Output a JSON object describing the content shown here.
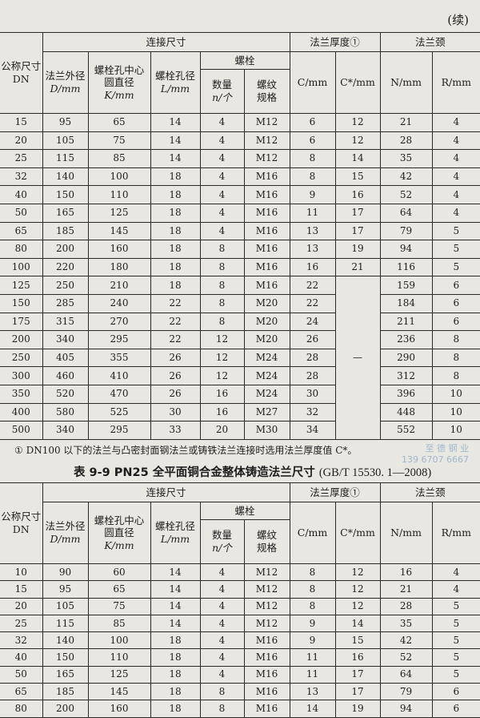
{
  "continued_label": "(续)",
  "headers": {
    "dn": [
      "公称尺寸",
      "DN"
    ],
    "connection": "连接尺寸",
    "d": [
      "法兰外径",
      "D/mm"
    ],
    "k": [
      "螺栓孔中心",
      "圆直径",
      "K/mm"
    ],
    "l": [
      "螺栓孔径",
      "L/mm"
    ],
    "bolt": "螺栓",
    "n": [
      "数量",
      "n/个"
    ],
    "thread": [
      "螺纹",
      "规格"
    ],
    "thickness": "法兰厚度①",
    "c": "C/mm",
    "cstar": "C*/mm",
    "neck": "法兰颈",
    "nn": "N/mm",
    "r": "R/mm"
  },
  "table1": {
    "rows": [
      [
        "15",
        "95",
        "65",
        "14",
        "4",
        "M12",
        "6",
        "12",
        "21",
        "4"
      ],
      [
        "20",
        "105",
        "75",
        "14",
        "4",
        "M12",
        "6",
        "12",
        "28",
        "4"
      ],
      [
        "25",
        "115",
        "85",
        "14",
        "4",
        "M12",
        "8",
        "14",
        "35",
        "4"
      ],
      [
        "32",
        "140",
        "100",
        "18",
        "4",
        "M16",
        "8",
        "15",
        "42",
        "4"
      ],
      [
        "40",
        "150",
        "110",
        "18",
        "4",
        "M16",
        "9",
        "16",
        "52",
        "4"
      ],
      [
        "50",
        "165",
        "125",
        "18",
        "4",
        "M16",
        "11",
        "17",
        "64",
        "4"
      ],
      [
        "65",
        "185",
        "145",
        "18",
        "4",
        "M16",
        "13",
        "17",
        "79",
        "5"
      ],
      [
        "80",
        "200",
        "160",
        "18",
        "8",
        "M16",
        "13",
        "19",
        "94",
        "5"
      ],
      [
        "100",
        "220",
        "180",
        "18",
        "8",
        "M16",
        "16",
        "21",
        "116",
        "5"
      ],
      [
        "125",
        "250",
        "210",
        "18",
        "8",
        "M16",
        "22",
        "—",
        "159",
        "6"
      ],
      [
        "150",
        "285",
        "240",
        "22",
        "8",
        "M20",
        "22",
        "",
        "184",
        "6"
      ],
      [
        "175",
        "315",
        "270",
        "22",
        "8",
        "M20",
        "24",
        "",
        "211",
        "6"
      ],
      [
        "200",
        "340",
        "295",
        "22",
        "12",
        "M20",
        "26",
        "",
        "236",
        "8"
      ],
      [
        "250",
        "405",
        "355",
        "26",
        "12",
        "M24",
        "28",
        "",
        "290",
        "8"
      ],
      [
        "300",
        "460",
        "410",
        "26",
        "12",
        "M24",
        "28",
        "",
        "312",
        "8"
      ],
      [
        "350",
        "520",
        "470",
        "26",
        "16",
        "M24",
        "30",
        "",
        "396",
        "10"
      ],
      [
        "400",
        "580",
        "525",
        "30",
        "16",
        "M27",
        "32",
        "",
        "448",
        "10"
      ],
      [
        "500",
        "340",
        "295",
        "33",
        "20",
        "M30",
        "34",
        "",
        "552",
        "10"
      ]
    ],
    "footnote": "① DN100 以下的法兰与凸密封面钢法兰或铸铁法兰连接时选用法兰厚度值 C*。"
  },
  "table2": {
    "caption": "表 9-9  PN25 全平面铜合金整体铸造法兰尺寸",
    "standard": "(GB/T 15530. 1—2008)",
    "rows": [
      [
        "10",
        "90",
        "60",
        "14",
        "4",
        "M12",
        "8",
        "12",
        "16",
        "4"
      ],
      [
        "15",
        "95",
        "65",
        "14",
        "4",
        "M12",
        "8",
        "12",
        "21",
        "4"
      ],
      [
        "20",
        "105",
        "75",
        "14",
        "4",
        "M12",
        "8",
        "12",
        "28",
        "5"
      ],
      [
        "25",
        "115",
        "85",
        "14",
        "4",
        "M12",
        "9",
        "14",
        "35",
        "5"
      ],
      [
        "32",
        "140",
        "100",
        "18",
        "4",
        "M16",
        "9",
        "15",
        "42",
        "5"
      ],
      [
        "40",
        "150",
        "110",
        "18",
        "4",
        "M16",
        "11",
        "16",
        "52",
        "5"
      ],
      [
        "50",
        "165",
        "125",
        "18",
        "4",
        "M16",
        "11",
        "17",
        "64",
        "5"
      ],
      [
        "65",
        "185",
        "145",
        "18",
        "8",
        "M16",
        "13",
        "17",
        "79",
        "6"
      ],
      [
        "80",
        "200",
        "160",
        "18",
        "8",
        "M16",
        "14",
        "19",
        "94",
        "6"
      ]
    ]
  },
  "watermark": [
    "至 德 钢 业",
    "139 6707 6667"
  ]
}
